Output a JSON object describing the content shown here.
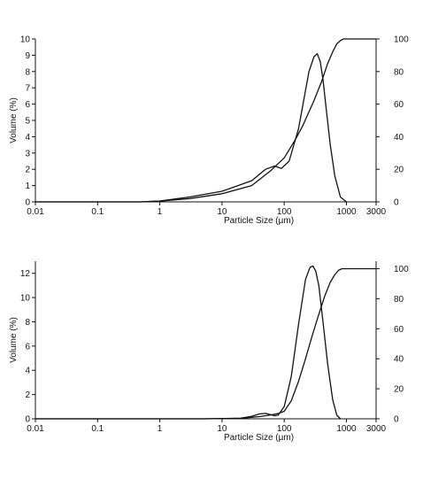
{
  "chart_data": [
    {
      "type": "line",
      "xlabel": "Particle Size (µm)",
      "ylabel": "Volume (%)",
      "x_scale": "log",
      "xlim": [
        0.01,
        3000
      ],
      "ylim": [
        0,
        10
      ],
      "y2lim": [
        0,
        100
      ],
      "x_ticks": [
        "0.01",
        "0.1",
        "1",
        "10",
        "100",
        "1000",
        "3000"
      ],
      "x_tick_values": [
        0.01,
        0.1,
        1,
        10,
        100,
        1000,
        3000
      ],
      "y_ticks": [
        "0",
        "1",
        "2",
        "3",
        "4",
        "5",
        "6",
        "7",
        "8",
        "9",
        "10"
      ],
      "y_tick_values": [
        0,
        1,
        2,
        3,
        4,
        5,
        6,
        7,
        8,
        9,
        10
      ],
      "y2_ticks": [
        "0",
        "20",
        "40",
        "60",
        "80",
        "100"
      ],
      "y2_tick_values": [
        0,
        20,
        40,
        60,
        80,
        100
      ],
      "series": [
        {
          "axis": "left",
          "x": [
            0.01,
            0.5,
            1,
            3,
            10,
            30,
            50,
            70,
            90,
            120,
            170,
            250,
            300,
            340,
            380,
            420,
            480,
            550,
            650,
            800,
            1000
          ],
          "values": [
            0,
            0,
            0.05,
            0.3,
            0.65,
            1.3,
            2.0,
            2.2,
            2.05,
            2.5,
            4.5,
            8.0,
            8.9,
            9.1,
            8.6,
            7.5,
            5.5,
            3.5,
            1.6,
            0.3,
            0
          ]
        },
        {
          "axis": "right",
          "x": [
            0.01,
            0.5,
            1,
            3,
            10,
            30,
            60,
            100,
            150,
            200,
            300,
            400,
            500,
            600,
            700,
            800,
            900,
            1000,
            2000,
            3000
          ],
          "values": [
            0,
            0,
            0.5,
            2,
            5,
            10,
            19,
            27,
            38,
            47,
            62,
            74,
            85,
            92,
            97,
            99,
            100,
            100,
            100,
            100
          ]
        }
      ]
    },
    {
      "type": "line",
      "xlabel": "Particle Size (µm)",
      "ylabel": "Volume (%)",
      "x_scale": "log",
      "xlim": [
        0.01,
        3000
      ],
      "ylim": [
        0,
        13
      ],
      "y2lim": [
        0,
        105
      ],
      "x_ticks": [
        "0.01",
        "0.1",
        "1",
        "10",
        "100",
        "1000",
        "3000"
      ],
      "x_tick_values": [
        0.01,
        0.1,
        1,
        10,
        100,
        1000,
        3000
      ],
      "y_ticks": [
        "0",
        "2",
        "4",
        "6",
        "8",
        "10",
        "12"
      ],
      "y_tick_values": [
        0,
        2,
        4,
        6,
        8,
        10,
        12
      ],
      "y2_ticks": [
        "0",
        "20",
        "40",
        "60",
        "80",
        "100"
      ],
      "y2_tick_values": [
        0,
        20,
        40,
        60,
        80,
        100
      ],
      "series": [
        {
          "axis": "left",
          "x": [
            0.01,
            5,
            20,
            30,
            40,
            50,
            60,
            70,
            80,
            100,
            130,
            170,
            220,
            260,
            290,
            320,
            360,
            420,
            500,
            600,
            700,
            800
          ],
          "values": [
            0,
            0,
            0.05,
            0.2,
            0.4,
            0.45,
            0.35,
            0.25,
            0.3,
            1.0,
            3.5,
            7.8,
            11.5,
            12.5,
            12.6,
            12.2,
            11.0,
            8.0,
            4.5,
            1.6,
            0.3,
            0
          ]
        },
        {
          "axis": "right",
          "x": [
            0.01,
            5,
            20,
            40,
            60,
            80,
            100,
            130,
            170,
            220,
            280,
            350,
            450,
            550,
            650,
            750,
            850,
            1000,
            2000,
            3000
          ],
          "values": [
            0,
            0,
            0.3,
            1.5,
            2.5,
            3.5,
            5,
            12,
            25,
            40,
            55,
            68,
            82,
            91,
            96,
            99,
            100,
            100,
            100,
            100
          ]
        }
      ]
    }
  ]
}
